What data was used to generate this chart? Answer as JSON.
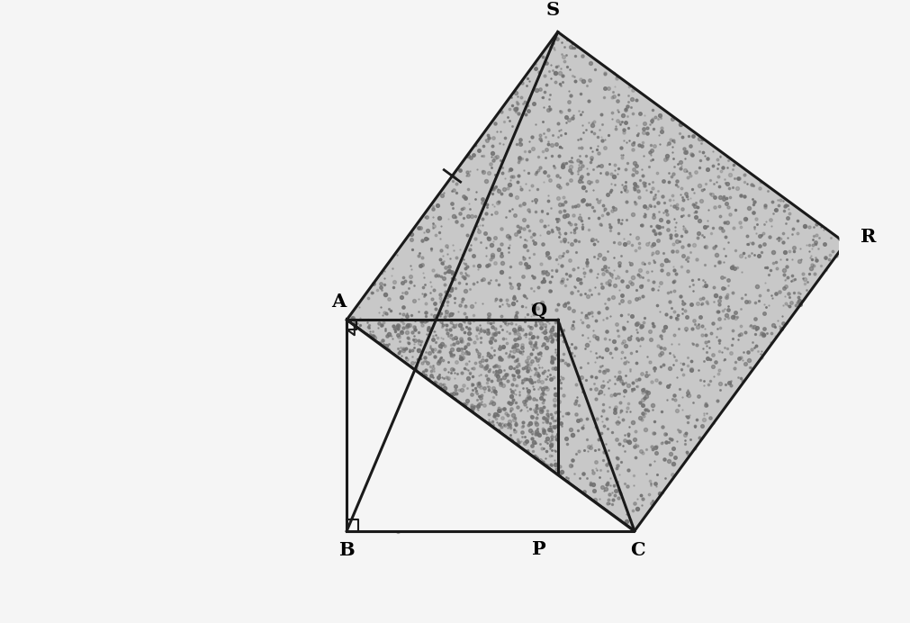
{
  "background_color": "#f5f5f5",
  "line_color": "#1a1a1a",
  "fill_color": "#b8b8b8",
  "B": [
    3.5,
    0.5
  ],
  "A": [
    3.5,
    3.8
  ],
  "C": [
    8.0,
    0.5
  ],
  "label_fontsize": 15,
  "figsize": [
    10.12,
    6.92
  ],
  "dpi": 100
}
